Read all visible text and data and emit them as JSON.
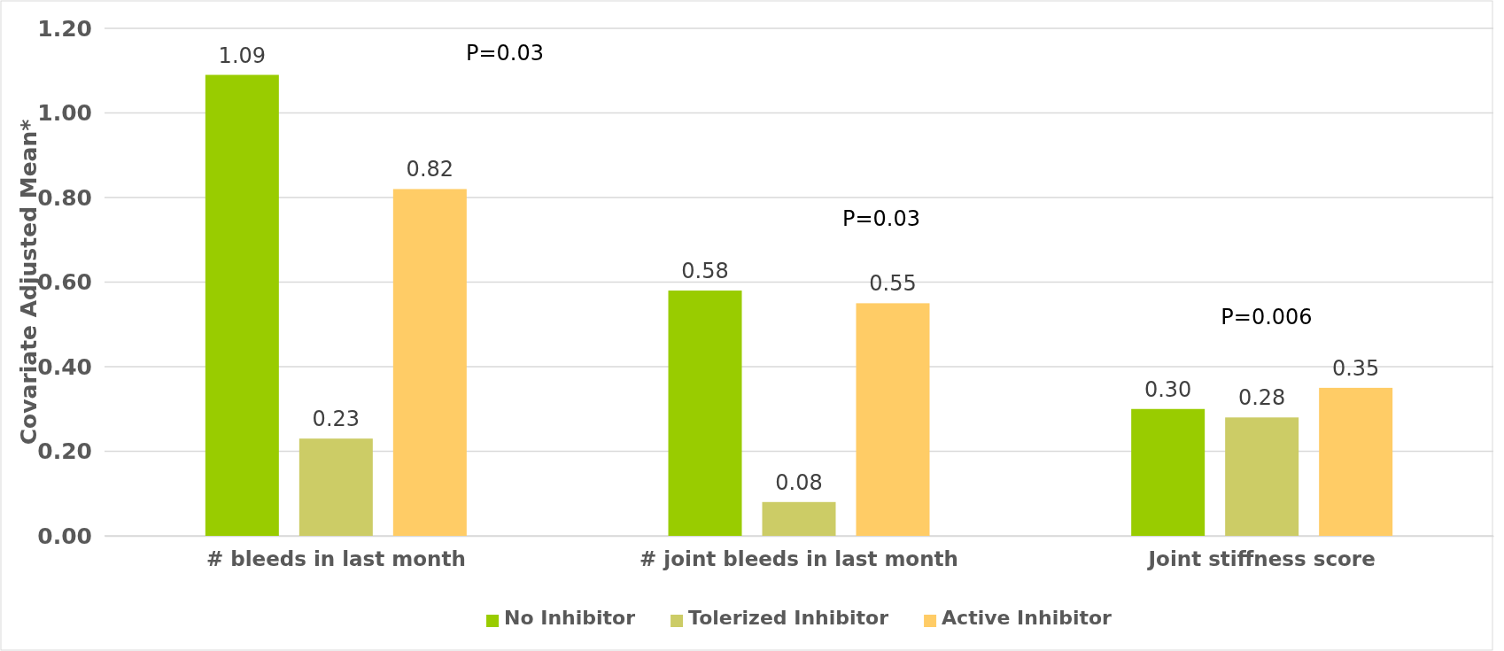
{
  "chart_data": {
    "type": "bar",
    "ylabel": "Covariate Adjusted Mean*",
    "categories": [
      "# bleeds in last month",
      "# joint bleeds in last month",
      "Joint stiffness score"
    ],
    "series": [
      {
        "name": "No Inhibitor",
        "color": "#99cc00",
        "values": [
          1.09,
          0.58,
          0.3
        ]
      },
      {
        "name": "Tolerized Inhibitor",
        "color": "#cccc66",
        "values": [
          0.23,
          0.08,
          0.28
        ]
      },
      {
        "name": "Active Inhibitor",
        "color": "#ffcc66",
        "values": [
          0.82,
          0.55,
          0.35
        ]
      }
    ],
    "ylim": [
      0,
      1.2
    ],
    "yticks": [
      {
        "value": 0,
        "label": "0.00"
      },
      {
        "value": 0.2,
        "label": "0.20"
      },
      {
        "value": 0.4,
        "label": "0.40"
      },
      {
        "value": 0.6,
        "label": "0.60"
      },
      {
        "value": 0.8,
        "label": "0.80"
      },
      {
        "value": 1.0,
        "label": "1.00"
      },
      {
        "value": 1.2,
        "label": "1.20"
      }
    ],
    "grid": "y",
    "legend": "bottom",
    "value_labels": [
      [
        "1.09",
        "0.58",
        "0.30"
      ],
      [
        "0.23",
        "0.08",
        "0.28"
      ],
      [
        "0.82",
        "0.55",
        "0.35"
      ]
    ],
    "annotations": [
      "P=0.03",
      "P=0.03",
      "P=0.006"
    ]
  }
}
